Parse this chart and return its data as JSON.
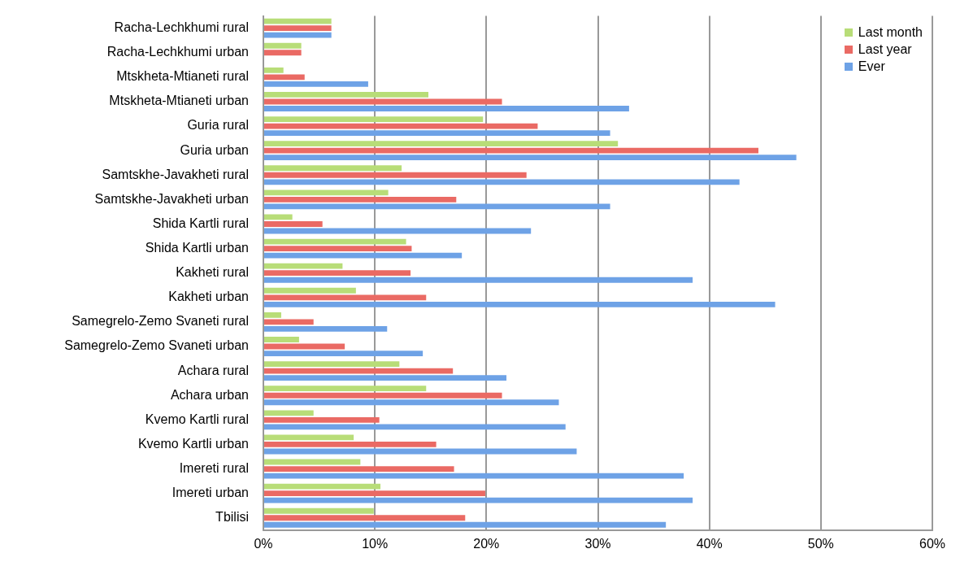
{
  "chart_data": {
    "type": "bar",
    "orientation": "horizontal",
    "categories": [
      "Racha-Lechkhumi rural",
      "Racha-Lechkhumi urban",
      "Mtskheta-Mtianeti rural",
      "Mtskheta-Mtianeti urban",
      "Guria rural",
      "Guria urban",
      "Samtskhe-Javakheti rural",
      "Samtskhe-Javakheti urban",
      "Shida Kartli rural",
      "Shida Kartli urban",
      "Kakheti rural",
      "Kakheti urban",
      "Samegrelo-Zemo Svaneti rural",
      "Samegrelo-Zemo Svaneti urban",
      "Achara rural",
      "Achara urban",
      "Kvemo Kartli rural",
      "Kvemo Kartli urban",
      "Imereti rural",
      "Imereti urban",
      "Tbilisi"
    ],
    "series": [
      {
        "name": "Last month",
        "color": "#b8dd78",
        "values": [
          6.1,
          3.4,
          1.8,
          14.8,
          19.7,
          31.8,
          12.4,
          11.2,
          2.6,
          12.8,
          7.1,
          8.3,
          1.6,
          3.2,
          12.2,
          14.6,
          4.5,
          8.1,
          8.7,
          10.5,
          9.9
        ]
      },
      {
        "name": "Last year",
        "color": "#ea6a64",
        "values": [
          6.1,
          3.4,
          3.7,
          21.4,
          24.6,
          44.4,
          23.6,
          17.3,
          5.3,
          13.3,
          13.2,
          14.6,
          4.5,
          7.3,
          17.0,
          21.4,
          10.4,
          15.5,
          17.1,
          19.9,
          18.1
        ]
      },
      {
        "name": "Ever",
        "color": "#6ea2e6",
        "values": [
          6.1,
          null,
          9.4,
          32.8,
          31.1,
          47.8,
          42.7,
          31.1,
          24.0,
          17.8,
          38.5,
          45.9,
          11.1,
          14.3,
          21.8,
          26.5,
          27.1,
          28.1,
          37.7,
          38.5,
          36.1
        ]
      }
    ],
    "xlim": [
      0,
      60
    ],
    "xticks": [
      {
        "value": 0,
        "label": "0%"
      },
      {
        "value": 10,
        "label": "10%"
      },
      {
        "value": 20,
        "label": "20%"
      },
      {
        "value": 30,
        "label": "30%"
      },
      {
        "value": 40,
        "label": "40%"
      },
      {
        "value": 50,
        "label": "50%"
      },
      {
        "value": 60,
        "label": "60%"
      }
    ],
    "grid": "x",
    "legend": "top right"
  }
}
